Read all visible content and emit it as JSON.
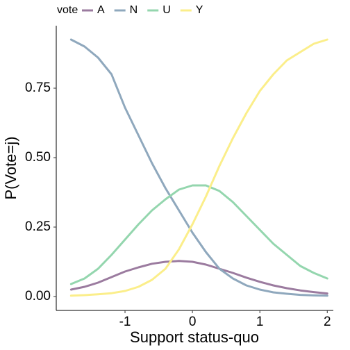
{
  "chart_data": {
    "type": "line",
    "x_label": "Support status-quo",
    "y_label": "P(Vote=j)",
    "legend_title": "vote",
    "legend_position": "top",
    "x": [
      -1.8,
      -1.6,
      -1.4,
      -1.2,
      -1.0,
      -0.8,
      -0.6,
      -0.4,
      -0.2,
      0,
      0.2,
      0.4,
      0.6,
      0.8,
      1.0,
      1.2,
      1.4,
      1.6,
      1.8,
      2.0
    ],
    "series": [
      {
        "name": "A",
        "color": "#9b7b9f",
        "values": [
          0.025,
          0.035,
          0.05,
          0.07,
          0.09,
          0.105,
          0.118,
          0.125,
          0.128,
          0.125,
          0.115,
          0.1,
          0.085,
          0.068,
          0.053,
          0.04,
          0.03,
          0.022,
          0.016,
          0.011
        ]
      },
      {
        "name": "N",
        "color": "#8fa8bd",
        "values": [
          0.925,
          0.9,
          0.86,
          0.8,
          0.68,
          0.58,
          0.48,
          0.39,
          0.31,
          0.23,
          0.16,
          0.1,
          0.065,
          0.04,
          0.025,
          0.015,
          0.01,
          0.006,
          0.004,
          0.003
        ]
      },
      {
        "name": "U",
        "color": "#94d6ae",
        "values": [
          0.045,
          0.065,
          0.1,
          0.15,
          0.205,
          0.26,
          0.31,
          0.35,
          0.385,
          0.4,
          0.4,
          0.38,
          0.34,
          0.29,
          0.24,
          0.19,
          0.15,
          0.11,
          0.085,
          0.065
        ]
      },
      {
        "name": "Y",
        "color": "#fbee8a",
        "values": [
          0.003,
          0.005,
          0.008,
          0.012,
          0.02,
          0.035,
          0.06,
          0.1,
          0.17,
          0.26,
          0.36,
          0.47,
          0.57,
          0.66,
          0.74,
          0.8,
          0.85,
          0.88,
          0.91,
          0.925
        ]
      }
    ],
    "xlim": [
      -2.02,
      2.09
    ],
    "ylim": [
      -0.05,
      0.975
    ],
    "xticks": [
      -1,
      0,
      1,
      2
    ],
    "yticks": [
      {
        "value": 0,
        "label": "0.00"
      },
      {
        "value": 0.25,
        "label": "0.25"
      },
      {
        "value": 0.5,
        "label": "0.50"
      },
      {
        "value": 0.75,
        "label": "0.75"
      }
    ],
    "grid": false
  }
}
